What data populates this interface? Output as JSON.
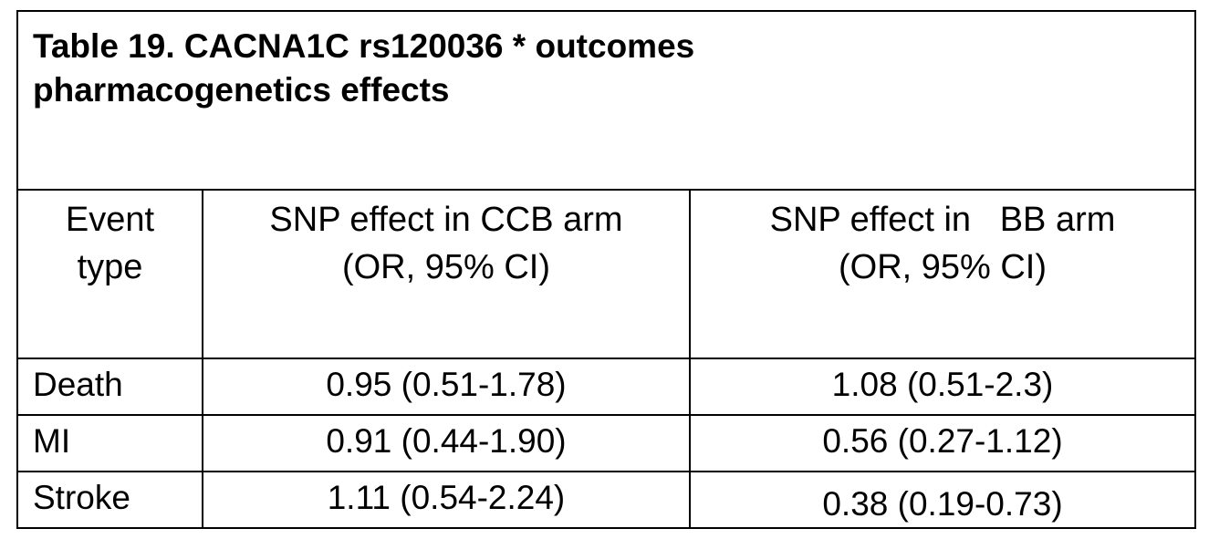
{
  "table": {
    "title_line1": "Table 19.  CACNA1C rs120036 * outcomes",
    "title_line2": "pharmacogenetics effects",
    "headers": {
      "event_line1": "Event",
      "event_line2": "type",
      "ccb_line1": "SNP effect in CCB arm",
      "ccb_line2": "(OR, 95% CI)",
      "bb_line1": "SNP effect in   BB arm",
      "bb_line2": "(OR, 95% CI)"
    },
    "rows": [
      {
        "event": "Death",
        "ccb": "0.95 (0.51-1.78)",
        "bb": "1.08 (0.51-2.3)"
      },
      {
        "event": "MI",
        "ccb": "0.91 (0.44-1.90)",
        "bb": "0.56 (0.27-1.12)"
      },
      {
        "event": "Stroke",
        "ccb": "1.11 (0.54-2.24)",
        "bb": "0.38 (0.19-0.73)"
      }
    ]
  }
}
